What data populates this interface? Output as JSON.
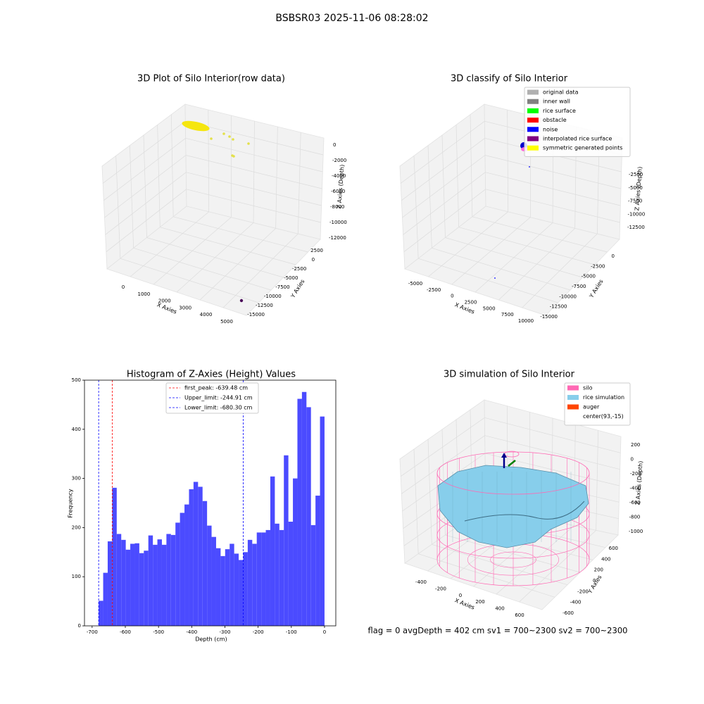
{
  "title": "BSBSR03 2025-11-06 08:28:02",
  "chart_data": [
    {
      "type": "scatter3d",
      "title": "3D Plot of Silo Interior(row data)",
      "xlabel": "X Axies",
      "ylabel": "Y Axies",
      "zlabel": "Z Axies (Depth)",
      "xticks": [
        0,
        1000,
        2000,
        3000,
        4000,
        5000
      ],
      "yticks": [
        2500,
        0,
        -2500,
        -5000,
        -7500,
        -10000,
        -12500,
        -15000
      ],
      "zticks": [
        0,
        -2000,
        -4000,
        -6000,
        -8000,
        -10000,
        -12000
      ]
    },
    {
      "type": "scatter3d",
      "title": "3D classify of Silo Interior",
      "xlabel": "X Axies",
      "ylabel": "Y Axies",
      "zlabel": "Z Axies (Depth)",
      "xticks": [
        -5000,
        -2500,
        0,
        2500,
        5000,
        7500,
        10000
      ],
      "yticks": [
        0,
        -2500,
        -5000,
        -7500,
        -10000,
        -12500,
        -15000
      ],
      "zticks": [
        -2500,
        -5000,
        -7500,
        -10000,
        -12500
      ],
      "legend": [
        {
          "name": "original data",
          "color": "#b0b0b0"
        },
        {
          "name": "inner wall",
          "color": "#808080"
        },
        {
          "name": "rice surface",
          "color": "#00ff00"
        },
        {
          "name": "obstacle",
          "color": "#ff0000"
        },
        {
          "name": "noise",
          "color": "#0000ff"
        },
        {
          "name": "interpolated rice surface",
          "color": "#800080"
        },
        {
          "name": "symmetric generated points",
          "color": "#ffff00"
        }
      ]
    },
    {
      "type": "histogram",
      "title": "Histogram of Z-Axies (Height) Values",
      "xlabel": "Depth (cm)",
      "ylabel": "Frequency",
      "color": "#4b4bff",
      "bins": [
        -680.3,
        -666.69,
        -653.09,
        -639.48,
        -625.88,
        -612.27,
        -598.66,
        -585.06,
        -571.45,
        -557.85,
        -544.24,
        -530.63,
        -517.03,
        -503.42,
        -489.82,
        -476.21,
        -462.6,
        -449.0,
        -435.39,
        -421.79,
        -408.18,
        -394.57,
        -380.97,
        -367.36,
        -353.76,
        -340.15,
        -326.54,
        -312.94,
        -299.33,
        -285.73,
        -272.12,
        -258.51,
        -244.91,
        -231.3,
        -217.7,
        -204.09,
        -190.48,
        -176.88,
        -163.27,
        -149.67,
        -136.06,
        -122.45,
        -108.85,
        -95.24,
        -81.64,
        -68.03,
        -54.42,
        -40.82,
        -27.21,
        -13.61,
        0
      ],
      "values": [
        51,
        108,
        172,
        281,
        187,
        175,
        155,
        167,
        168,
        148,
        153,
        184,
        165,
        176,
        165,
        187,
        185,
        210,
        230,
        247,
        278,
        293,
        283,
        254,
        204,
        181,
        158,
        142,
        156,
        167,
        147,
        134,
        150,
        175,
        167,
        190,
        190,
        195,
        304,
        208,
        195,
        347,
        212,
        300,
        462,
        476,
        445,
        205,
        265,
        426
      ],
      "xlim": [
        -723,
        34
      ],
      "ylim": [
        0,
        500
      ],
      "xticks": [
        -700,
        -600,
        -500,
        -400,
        -300,
        -200,
        -100,
        0
      ],
      "yticks": [
        0,
        100,
        200,
        300,
        400,
        500
      ],
      "lines": [
        {
          "name": "first_peak: -639.48 cm",
          "value": -639.48,
          "color": "#ff0000"
        },
        {
          "name": "Upper_limit: -244.91 cm",
          "value": -244.91,
          "color": "#0000ff"
        },
        {
          "name": "Lower_limit: -680.30 cm",
          "value": -680.3,
          "color": "#0000ff"
        }
      ]
    },
    {
      "type": "surface3d",
      "title": "3D simulation of Silo Interior",
      "xlabel": "X Axies",
      "ylabel": "Y Axies",
      "zlabel": "Z Axies (Depth)",
      "xticks": [
        -400,
        -200,
        0,
        200,
        400,
        600
      ],
      "yticks": [
        600,
        400,
        200,
        0,
        -200,
        -400,
        -600
      ],
      "zticks": [
        200,
        0,
        -200,
        -400,
        -600,
        -800,
        -1000
      ],
      "legend": [
        {
          "name": "silo",
          "color": "#ff69b4"
        },
        {
          "name": "rice simulation",
          "color": "#87ceeb"
        },
        {
          "name": "auger",
          "color": "#ff4500"
        },
        {
          "name": "center(93,-15)",
          "color": "#ffffff"
        }
      ]
    }
  ],
  "footer": "flag = 0     avgDepth = 402 cm  sv1 = 700~2300  sv2 = 700~2300"
}
